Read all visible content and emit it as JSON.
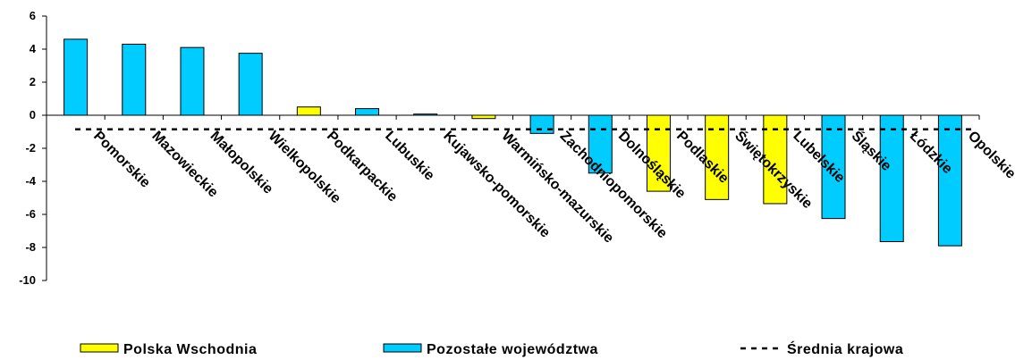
{
  "chart_data": {
    "type": "bar",
    "categories": [
      "Pomorskie",
      "Mazowieckie",
      "Małopolskie",
      "Wielkopolskie",
      "Podkarpackie",
      "Lubuskie",
      "Kujawsko-pomorskie",
      "Warmińsko-mazurskie",
      "Zachodniopomorskie",
      "Dolnośląskie",
      "Podlaskie",
      "Świętokrzyskie",
      "Lubelskie",
      "Śląskie",
      "Łódzkie",
      "Opolskie"
    ],
    "values": [
      4.6,
      4.3,
      4.1,
      3.75,
      0.5,
      0.4,
      0.07,
      -0.2,
      -1.1,
      -3.5,
      -4.6,
      -5.1,
      -5.35,
      -6.25,
      -7.65,
      -7.9
    ],
    "groups": [
      "Pozostałe województwa",
      "Pozostałe województwa",
      "Pozostałe województwa",
      "Pozostałe województwa",
      "Polska Wschodnia",
      "Pozostałe województwa",
      "Pozostałe województwa",
      "Polska Wschodnia",
      "Pozostałe województwa",
      "Pozostałe województwa",
      "Polska Wschodnia",
      "Polska Wschodnia",
      "Polska Wschodnia",
      "Pozostałe województwa",
      "Pozostałe województwa",
      "Pozostałe województwa"
    ],
    "series": [
      {
        "name": "Polska Wschodnia",
        "color": "#ffff00"
      },
      {
        "name": "Pozostałe województwa",
        "color": "#00ccff"
      }
    ],
    "reference_line": {
      "name": "Średnia krajowa",
      "value": -0.85
    },
    "ylim": [
      -10,
      6
    ],
    "yticks": [
      6,
      4,
      2,
      0,
      -2,
      -4,
      -6,
      -8,
      -10
    ],
    "ytick_labels": [
      "6",
      "4",
      "2",
      "0",
      "-2",
      "-4",
      "-6",
      "-8",
      "-10"
    ],
    "grid": false,
    "legend_position": "bottom",
    "title": "",
    "xlabel": "",
    "ylabel": ""
  }
}
